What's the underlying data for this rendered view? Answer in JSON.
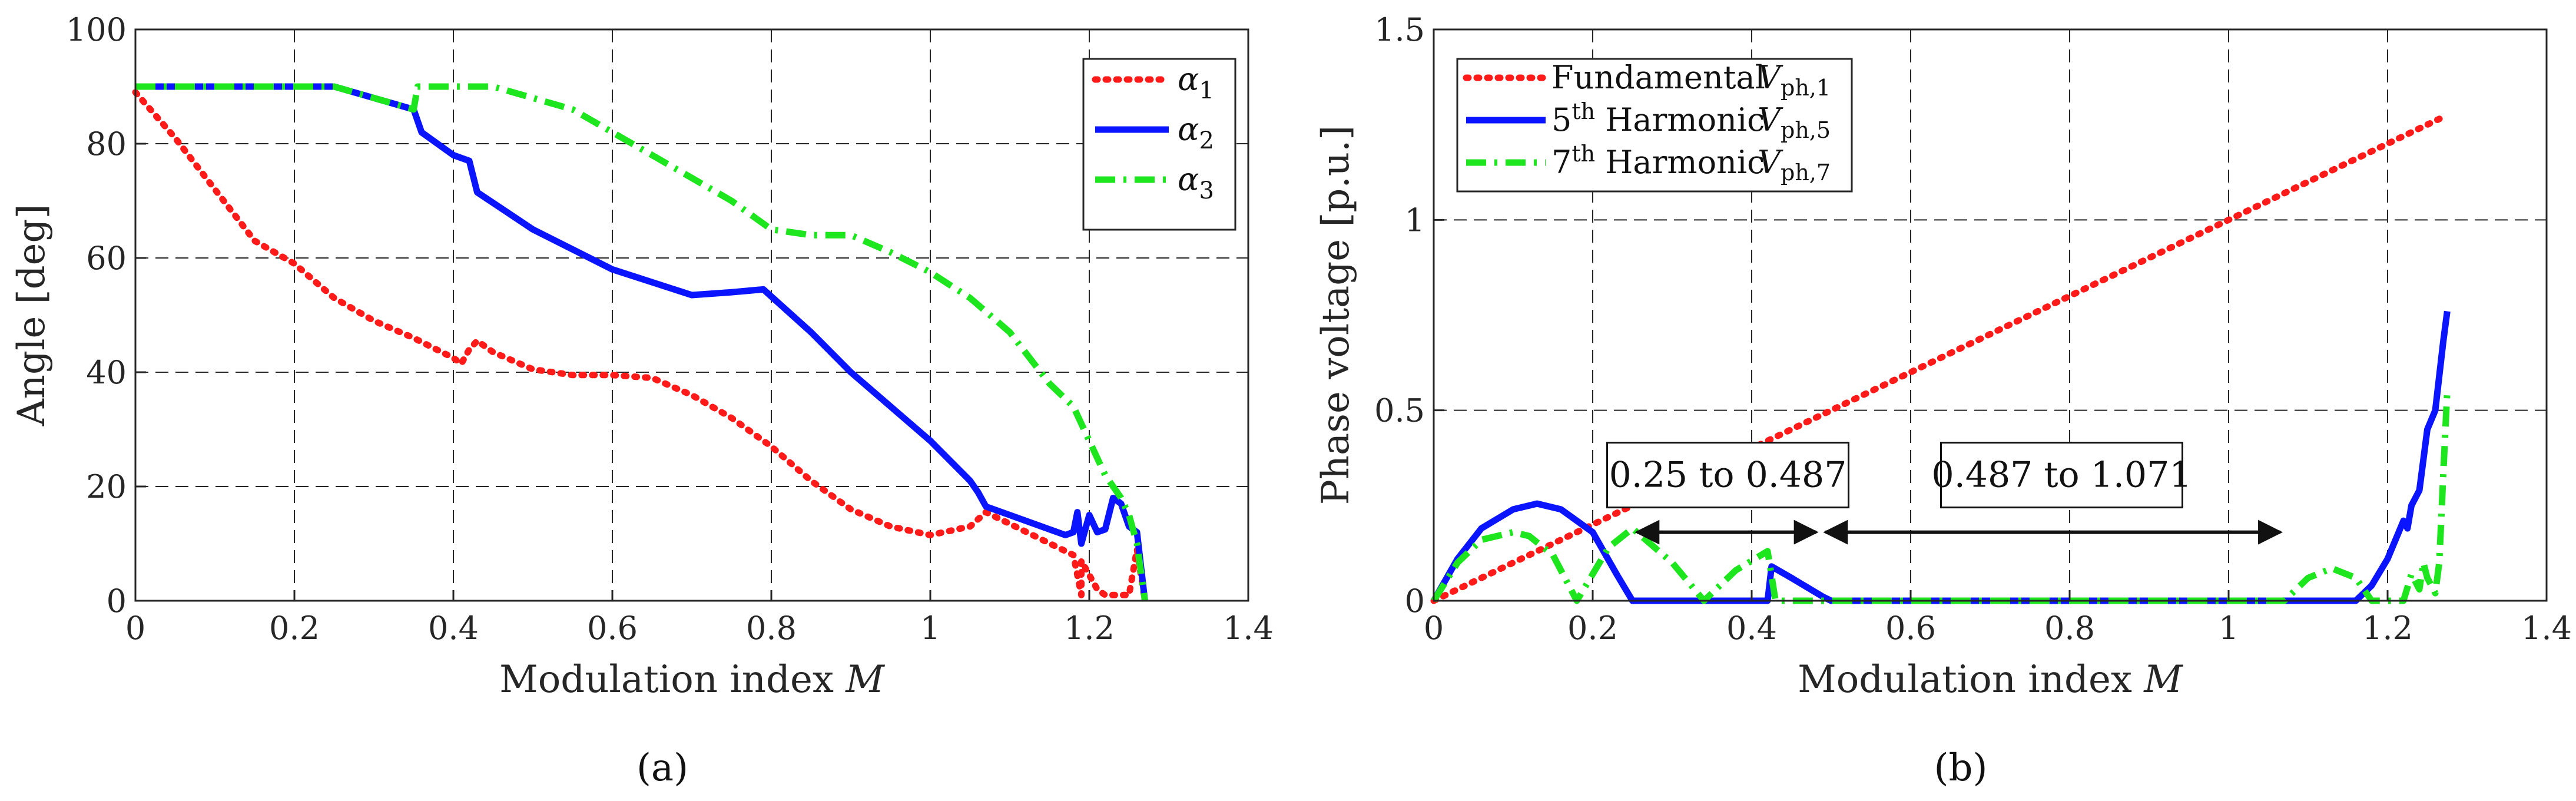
{
  "chart_data": [
    {
      "id": "a",
      "type": "line",
      "panel_label": "(a)",
      "xlabel": "Modulation index",
      "xlabel_var": "M",
      "ylabel": "Angle [deg]",
      "xlim": [
        0,
        1.4
      ],
      "ylim": [
        0,
        100
      ],
      "xticks": [
        0,
        0.2,
        0.4,
        0.6,
        0.8,
        1,
        1.2,
        1.4
      ],
      "xtick_labels": [
        "0",
        "0.2",
        "0.4",
        "0.6",
        "0.8",
        "1",
        "1.2",
        "1.4"
      ],
      "yticks": [
        0,
        20,
        40,
        60,
        80,
        100
      ],
      "ytick_labels": [
        "0",
        "20",
        "40",
        "60",
        "80",
        "100"
      ],
      "grid": true,
      "legend_position": "top-right",
      "series": [
        {
          "name": "α",
          "sub": "1",
          "color": "#ff1a1a",
          "style": "dotted",
          "x": [
            0,
            0.05,
            0.1,
            0.15,
            0.2,
            0.25,
            0.3,
            0.35,
            0.4,
            0.41,
            0.42,
            0.43,
            0.45,
            0.5,
            0.55,
            0.6,
            0.65,
            0.7,
            0.75,
            0.8,
            0.85,
            0.9,
            0.95,
            1.0,
            1.05,
            1.07,
            1.18,
            1.19,
            1.19,
            1.21,
            1.22,
            1.25,
            1.26,
            1.27
          ],
          "y": [
            89,
            81,
            72,
            63,
            59,
            53,
            49,
            46,
            42.5,
            41.5,
            44,
            45.5,
            43.5,
            40.5,
            39.5,
            39.5,
            39,
            36,
            32,
            27,
            21,
            16,
            13,
            11.5,
            13,
            15.5,
            8,
            1,
            7,
            2,
            1,
            1,
            9,
            0
          ]
        },
        {
          "name": "α",
          "sub": "2",
          "color": "#0a14ff",
          "style": "solid",
          "x": [
            0,
            0.1,
            0.2,
            0.25,
            0.3,
            0.35,
            0.36,
            0.4,
            0.42,
            0.43,
            0.5,
            0.6,
            0.7,
            0.75,
            0.79,
            0.85,
            0.9,
            0.95,
            1.0,
            1.05,
            1.06,
            1.07,
            1.1,
            1.15,
            1.17,
            1.18,
            1.185,
            1.19,
            1.2,
            1.21,
            1.22,
            1.23,
            1.24,
            1.25,
            1.26,
            1.27
          ],
          "y": [
            90,
            90,
            90,
            90,
            88,
            86,
            82,
            78,
            77,
            71.5,
            65,
            58,
            53.5,
            54,
            54.5,
            47,
            40,
            34,
            28,
            21,
            19,
            16.5,
            15,
            12.5,
            11.5,
            12,
            15.5,
            10,
            15,
            12,
            12.5,
            18,
            17,
            13,
            12,
            0
          ]
        },
        {
          "name": "α",
          "sub": "3",
          "color": "#1ee61e",
          "style": "dashdot",
          "x": [
            0,
            0.1,
            0.2,
            0.25,
            0.3,
            0.35,
            0.355,
            0.4,
            0.45,
            0.5,
            0.55,
            0.6,
            0.65,
            0.7,
            0.75,
            0.8,
            0.85,
            0.9,
            0.95,
            1.0,
            1.05,
            1.1,
            1.15,
            1.18,
            1.2,
            1.21,
            1.22,
            1.23,
            1.24,
            1.25,
            1.26,
            1.27
          ],
          "y": [
            90,
            90,
            90,
            90,
            88,
            86,
            90,
            90,
            90,
            88,
            86,
            82,
            78,
            74,
            70,
            65,
            64,
            64,
            61,
            57.5,
            53,
            47,
            38,
            34,
            28,
            25,
            22,
            20,
            18,
            15,
            10,
            0
          ]
        }
      ]
    },
    {
      "id": "b",
      "type": "line",
      "panel_label": "(b)",
      "xlabel": "Modulation index",
      "xlabel_var": "M",
      "ylabel": "Phase voltage [p.u.]",
      "xlim": [
        0,
        1.4
      ],
      "ylim": [
        0,
        1.5
      ],
      "xticks": [
        0,
        0.2,
        0.4,
        0.6,
        0.8,
        1,
        1.2,
        1.4
      ],
      "xtick_labels": [
        "0",
        "0.2",
        "0.4",
        "0.6",
        "0.8",
        "1",
        "1.2",
        "1.4"
      ],
      "yticks": [
        0,
        0.5,
        1,
        1.5
      ],
      "ytick_labels": [
        "0",
        "0.5",
        "1",
        "1.5"
      ],
      "grid": true,
      "legend_position": "top-left",
      "series": [
        {
          "name": "Fundamental",
          "sym": "V",
          "sub": "ph,1",
          "sup": "",
          "color": "#ff1a1a",
          "style": "dotted",
          "x": [
            0,
            1.27
          ],
          "y": [
            0,
            1.27
          ]
        },
        {
          "name": "5",
          "name_sup": "th",
          "name_rest": "Harmonic",
          "sym": "V",
          "sub": "ph,5",
          "color": "#0a14ff",
          "style": "solid",
          "x": [
            0,
            0.03,
            0.06,
            0.1,
            0.13,
            0.16,
            0.2,
            0.23,
            0.25,
            0.3,
            0.42,
            0.425,
            0.45,
            0.49,
            0.5,
            1.16,
            1.18,
            1.2,
            1.21,
            1.22,
            1.225,
            1.23,
            1.24,
            1.25,
            1.26,
            1.27,
            1.275
          ],
          "y": [
            0,
            0.11,
            0.19,
            0.24,
            0.255,
            0.24,
            0.18,
            0.07,
            0,
            0,
            0,
            0.09,
            0.06,
            0.01,
            0,
            0,
            0.04,
            0.11,
            0.16,
            0.21,
            0.19,
            0.25,
            0.29,
            0.45,
            0.5,
            0.68,
            0.76
          ]
        },
        {
          "name": "7",
          "name_sup": "th",
          "name_rest": "Harmonic",
          "sym": "V",
          "sub": "ph,7",
          "color": "#1ee61e",
          "style": "dashdot",
          "x": [
            0,
            0.03,
            0.06,
            0.1,
            0.12,
            0.15,
            0.18,
            0.22,
            0.25,
            0.3,
            0.34,
            0.38,
            0.42,
            0.43,
            0.5,
            1.07,
            1.1,
            1.13,
            1.16,
            1.18,
            1.22,
            1.23,
            1.24,
            1.245,
            1.25,
            1.26,
            1.265,
            1.27,
            1.275
          ],
          "y": [
            0,
            0.1,
            0.16,
            0.18,
            0.17,
            0.12,
            0,
            0.14,
            0.19,
            0.1,
            0,
            0.08,
            0.13,
            0,
            0,
            0,
            0.06,
            0.085,
            0.06,
            0,
            0,
            0.07,
            0.03,
            0.1,
            0.06,
            0.02,
            0.1,
            0.33,
            0.55
          ]
        }
      ],
      "annotations": [
        {
          "text": "0.25 to 0.487",
          "arrow_from": 0.25,
          "arrow_to": 0.487,
          "arrow_y": 0.18,
          "box_x": 0.37,
          "box_y": 0.33
        },
        {
          "text": "0.487 to 1.071",
          "arrow_from": 0.487,
          "arrow_to": 1.071,
          "arrow_y": 0.18,
          "box_x": 0.79,
          "box_y": 0.33
        }
      ]
    }
  ]
}
